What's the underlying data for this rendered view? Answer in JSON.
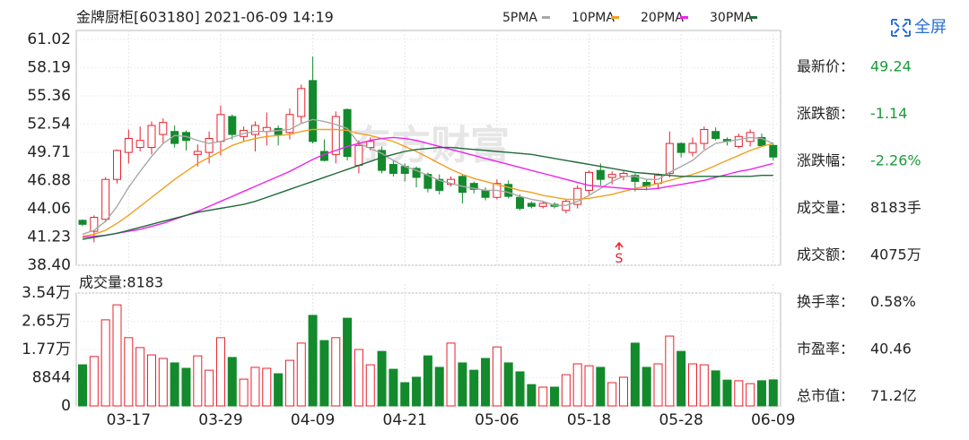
{
  "header": {
    "title": "金牌厨柜[603180] 2021-06-09 14:19",
    "fullscreen": "全屏"
  },
  "chart_data": [
    {
      "type": "candlestick",
      "up_color": "#e8212d",
      "down_color": "#138a2c",
      "ylim": [
        38.4,
        61.02
      ],
      "yticks": [
        61.02,
        58.19,
        55.36,
        52.54,
        49.71,
        46.88,
        44.06,
        41.23,
        {
          "value": 38.4,
          "label": "38.40"
        }
      ],
      "grid": true,
      "annotation": "S",
      "open": [
        42.9,
        41.8,
        43.0,
        47.0,
        49.7,
        50.2,
        50.2,
        51.5,
        51.8,
        51.7,
        49.5,
        49.7,
        50.8,
        53.3,
        51.3,
        51.5,
        51.8,
        52.1,
        51.7,
        53.3,
        56.9,
        49.8,
        49.5,
        54.0,
        48.4,
        50.2,
        49.9,
        48.5,
        48.3,
        48.1,
        47.5,
        47.0,
        46.5,
        47.3,
        46.6,
        45.9,
        45.2,
        46.5,
        45.2,
        44.6,
        44.3,
        44.5,
        43.9,
        44.5,
        45.9,
        47.9,
        47.2,
        47.3,
        47.4,
        46.7,
        46.6,
        47.6,
        50.6,
        49.7,
        50.6,
        51.8,
        51.0,
        50.3,
        50.8,
        51.2,
        50.4
      ],
      "high": [
        43.0,
        43.4,
        47.2,
        50.0,
        52.0,
        52.3,
        52.8,
        53.1,
        52.4,
        51.9,
        50.5,
        51.8,
        54.4,
        53.5,
        52.3,
        52.8,
        53.7,
        52.4,
        54.1,
        56.5,
        59.3,
        51.0,
        53.8,
        54.1,
        50.9,
        51.2,
        50.3,
        48.9,
        48.6,
        48.3,
        47.7,
        47.5,
        47.3,
        47.5,
        46.8,
        46.2,
        47.0,
        46.9,
        45.5,
        44.8,
        44.8,
        44.7,
        45.0,
        46.4,
        47.9,
        48.6,
        47.8,
        47.9,
        47.6,
        47.0,
        47.6,
        51.8,
        50.7,
        51.2,
        52.3,
        52.2,
        51.2,
        51.6,
        52.0,
        51.6,
        50.6
      ],
      "low": [
        42.3,
        40.7,
        42.7,
        46.6,
        48.6,
        49.8,
        49.5,
        50.5,
        50.2,
        49.9,
        48.3,
        48.6,
        49.4,
        51.0,
        50.8,
        49.8,
        50.4,
        50.4,
        51.0,
        52.6,
        50.6,
        48.8,
        48.6,
        48.9,
        47.6,
        49.9,
        47.6,
        47.3,
        46.8,
        46.2,
        45.7,
        45.5,
        46.3,
        44.6,
        45.6,
        44.9,
        45.0,
        45.1,
        43.9,
        44.1,
        44.1,
        44.1,
        43.6,
        44.1,
        45.5,
        46.4,
        46.5,
        46.9,
        45.8,
        45.9,
        46.0,
        47.2,
        49.2,
        49.3,
        50.0,
        50.9,
        50.4,
        50.1,
        50.3,
        50.4,
        48.9
      ],
      "close": [
        42.5,
        43.2,
        47.0,
        49.9,
        51.1,
        50.9,
        52.4,
        52.7,
        50.6,
        50.9,
        49.8,
        51.1,
        53.5,
        51.5,
        51.9,
        52.4,
        52.2,
        51.5,
        53.5,
        56.1,
        50.8,
        48.9,
        53.3,
        49.3,
        50.4,
        50.8,
        47.9,
        47.6,
        47.6,
        47.2,
        46.1,
        45.9,
        47.0,
        45.7,
        46.0,
        45.2,
        46.6,
        45.3,
        44.1,
        44.3,
        44.6,
        44.3,
        44.8,
        46.1,
        47.7,
        47.0,
        47.5,
        47.6,
        46.8,
        46.3,
        47.4,
        50.6,
        49.7,
        50.6,
        52.0,
        51.1,
        50.8,
        51.3,
        51.7,
        50.38,
        49.24
      ],
      "lines": [
        {
          "name": "5PMA",
          "color": "#a8a8a8",
          "values": [
            41.5,
            41.9,
            42.8,
            44.3,
            46.2,
            47.8,
            49.3,
            50.6,
            51.4,
            51.3,
            50.9,
            50.6,
            50.8,
            51.2,
            51.6,
            51.8,
            51.8,
            51.9,
            52.0,
            52.6,
            53.0,
            52.8,
            52.5,
            52.1,
            50.6,
            50.1,
            49.6,
            48.9,
            48.3,
            47.9,
            47.4,
            46.9,
            46.6,
            46.3,
            46.1,
            45.9,
            45.9,
            45.7,
            45.3,
            45.0,
            44.8,
            44.4,
            44.4,
            44.8,
            45.4,
            46.1,
            46.8,
            47.3,
            47.3,
            47.0,
            47.0,
            47.7,
            48.3,
            48.9,
            49.9,
            50.6,
            50.8,
            51.0,
            51.2,
            51.1,
            50.6
          ]
        },
        {
          "name": "10PMA",
          "color": "#f0a020",
          "values": [
            41.3,
            41.5,
            41.9,
            42.6,
            43.4,
            44.3,
            45.2,
            46.1,
            47.0,
            47.8,
            48.6,
            49.2,
            49.8,
            50.4,
            50.8,
            51.1,
            51.3,
            51.4,
            51.5,
            51.8,
            52.0,
            52.0,
            52.0,
            51.9,
            51.6,
            51.4,
            51.1,
            50.8,
            50.3,
            49.8,
            49.2,
            48.6,
            48.0,
            47.5,
            47.1,
            46.8,
            46.5,
            46.2,
            45.9,
            45.7,
            45.4,
            45.2,
            45.0,
            45.0,
            45.1,
            45.3,
            45.5,
            45.8,
            46.1,
            46.3,
            46.6,
            46.9,
            47.2,
            47.5,
            47.9,
            48.4,
            48.9,
            49.4,
            49.9,
            50.3,
            50.6
          ]
        },
        {
          "name": "20PMA",
          "color": "#ee22ee",
          "values": [
            41.2,
            41.3,
            41.4,
            41.6,
            41.8,
            42.0,
            42.3,
            42.6,
            43.0,
            43.4,
            43.8,
            44.3,
            44.8,
            45.3,
            45.8,
            46.3,
            46.8,
            47.3,
            47.8,
            48.4,
            49.0,
            49.5,
            49.9,
            50.3,
            50.6,
            50.9,
            51.1,
            51.2,
            51.1,
            50.9,
            50.6,
            50.3,
            50.0,
            49.7,
            49.4,
            49.1,
            48.8,
            48.5,
            48.2,
            47.9,
            47.6,
            47.3,
            47.0,
            46.7,
            46.4,
            46.3,
            46.2,
            46.1,
            46.0,
            46.0,
            46.1,
            46.3,
            46.5,
            46.7,
            46.9,
            47.2,
            47.5,
            47.8,
            48.0,
            48.3,
            48.6
          ]
        },
        {
          "name": "30PMA",
          "color": "#1f6b3a",
          "values": [
            41.0,
            41.2,
            41.4,
            41.6,
            41.9,
            42.2,
            42.5,
            42.8,
            43.1,
            43.4,
            43.7,
            43.9,
            44.1,
            44.3,
            44.5,
            44.8,
            45.2,
            45.6,
            46.0,
            46.4,
            46.8,
            47.2,
            47.6,
            48.0,
            48.4,
            48.8,
            49.2,
            49.5,
            49.8,
            50.0,
            50.1,
            50.2,
            50.2,
            50.1,
            50.0,
            49.9,
            49.8,
            49.7,
            49.6,
            49.5,
            49.3,
            49.1,
            48.9,
            48.7,
            48.5,
            48.3,
            48.1,
            47.9,
            47.7,
            47.6,
            47.5,
            47.4,
            47.3,
            47.3,
            47.3,
            47.3,
            47.3,
            47.3,
            47.3,
            47.4,
            47.4
          ]
        }
      ]
    },
    {
      "type": "bar",
      "title": "成交量:8183",
      "ylim": [
        0,
        35400
      ],
      "yticks": [
        {
          "value": 35400,
          "label": "3.54万"
        },
        {
          "value": 26500,
          "label": "2.65万"
        },
        {
          "value": 17700,
          "label": "1.77万"
        },
        8844,
        0
      ],
      "categories": [
        null,
        null,
        null,
        null,
        "03-17",
        null,
        null,
        null,
        null,
        null,
        null,
        null,
        "03-29",
        null,
        null,
        null,
        null,
        null,
        null,
        null,
        "04-09",
        null,
        null,
        null,
        null,
        null,
        null,
        null,
        "04-21",
        null,
        null,
        null,
        null,
        null,
        null,
        null,
        "05-06",
        null,
        null,
        null,
        null,
        null,
        null,
        null,
        "05-18",
        null,
        null,
        null,
        null,
        null,
        null,
        null,
        "05-28",
        null,
        null,
        null,
        null,
        null,
        null,
        null,
        "06-09"
      ],
      "values": [
        12900,
        15500,
        27000,
        31700,
        21400,
        18300,
        16000,
        14900,
        13500,
        11800,
        15700,
        11200,
        21400,
        15200,
        8400,
        12100,
        11800,
        10100,
        14300,
        19700,
        28400,
        20500,
        21400,
        27500,
        17700,
        12900,
        17100,
        11500,
        7300,
        9000,
        15700,
        12100,
        19700,
        13500,
        11200,
        14900,
        18500,
        13500,
        10700,
        6700,
        5900,
        5900,
        9800,
        13200,
        12600,
        12100,
        7300,
        9000,
        19700,
        12100,
        13200,
        21900,
        17100,
        13200,
        12900,
        11000,
        8100,
        7900,
        7000,
        7900,
        8183
      ]
    }
  ],
  "info": {
    "rows": [
      {
        "label": "最新价：",
        "value": "49.24",
        "color": "#1a9a3a"
      },
      {
        "label": "涨跌额：",
        "value": "-1.14",
        "color": "#1a9a3a"
      },
      {
        "label": "涨跌幅：",
        "value": "-2.26%",
        "color": "#1a9a3a"
      },
      {
        "label": "成交量：",
        "value": "8183手",
        "color": "#222"
      },
      {
        "label": "成交额：",
        "value": "4075万",
        "color": "#222"
      },
      {
        "label": "换手率：",
        "value": "0.58%",
        "color": "#222"
      },
      {
        "label": "市盈率：",
        "value": "40.46",
        "color": "#222"
      },
      {
        "label": "总市值：",
        "value": "71.2亿",
        "color": "#222"
      }
    ]
  }
}
